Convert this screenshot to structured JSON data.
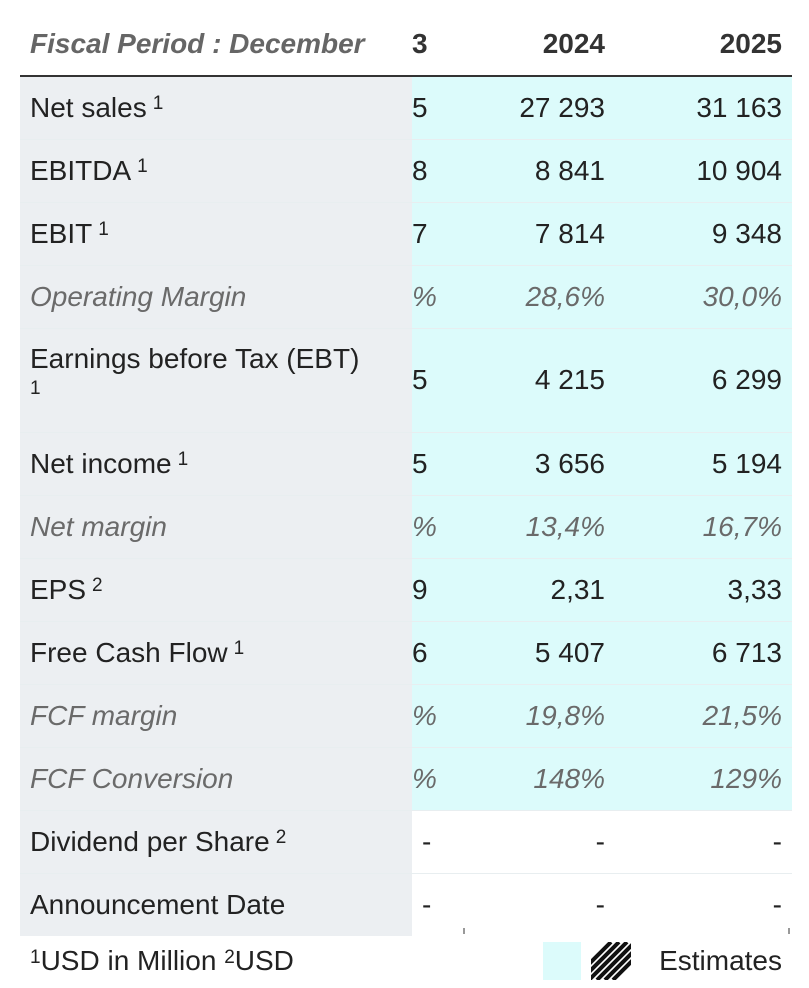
{
  "header": {
    "label": "Fiscal Period : December",
    "col_partial": "3",
    "col_2024": "2024",
    "col_2025": "2025"
  },
  "rows": [
    {
      "label": "Net sales",
      "sup": "1",
      "c3": "5",
      "c2024": "27 293",
      "c2025": "31 163"
    },
    {
      "label": "EBITDA",
      "sup": "1",
      "c3": "8",
      "c2024": "8 841",
      "c2025": "10 904"
    },
    {
      "label": "EBIT",
      "sup": "1",
      "c3": "7",
      "c2024": "7 814",
      "c2025": "9 348"
    },
    {
      "label": "Operating Margin",
      "sup": "",
      "c3": "%",
      "c2024": "28,6%",
      "c2025": "30,0%"
    },
    {
      "label": "Earnings before Tax (EBT)",
      "sup": "1",
      "c3": "5",
      "c2024": "4 215",
      "c2025": "6 299"
    },
    {
      "label": "Net income",
      "sup": "1",
      "c3": "5",
      "c2024": "3 656",
      "c2025": "5 194"
    },
    {
      "label": "Net margin",
      "sup": "",
      "c3": "%",
      "c2024": "13,4%",
      "c2025": "16,7%"
    },
    {
      "label": "EPS",
      "sup": "2",
      "c3": "9",
      "c2024": "2,31",
      "c2025": "3,33"
    },
    {
      "label": "Free Cash Flow",
      "sup": "1",
      "c3": "6",
      "c2024": "5 407",
      "c2025": "6 713"
    },
    {
      "label": "FCF margin",
      "sup": "",
      "c3": "%",
      "c2024": "19,8%",
      "c2025": "21,5%"
    },
    {
      "label": "FCF Conversion",
      "sup": "",
      "c3": "%",
      "c2024": "148%",
      "c2025": "129%"
    },
    {
      "label": "Dividend per Share",
      "sup": "2",
      "c3": "-",
      "c2024": "-",
      "c2025": "-"
    },
    {
      "label": "Announcement Date",
      "sup": "",
      "c3": "-",
      "c2024": "-",
      "c2025": "-"
    }
  ],
  "footer": {
    "note1_sup": "1",
    "note1": "USD in Million",
    "note2_sup": "2",
    "note2": "USD",
    "legend_label": "Estimates"
  },
  "colors": {
    "estimate_bg": "#dcfbfb",
    "label_bg": "#eceff2",
    "italic_text": "#6a6a6a"
  }
}
